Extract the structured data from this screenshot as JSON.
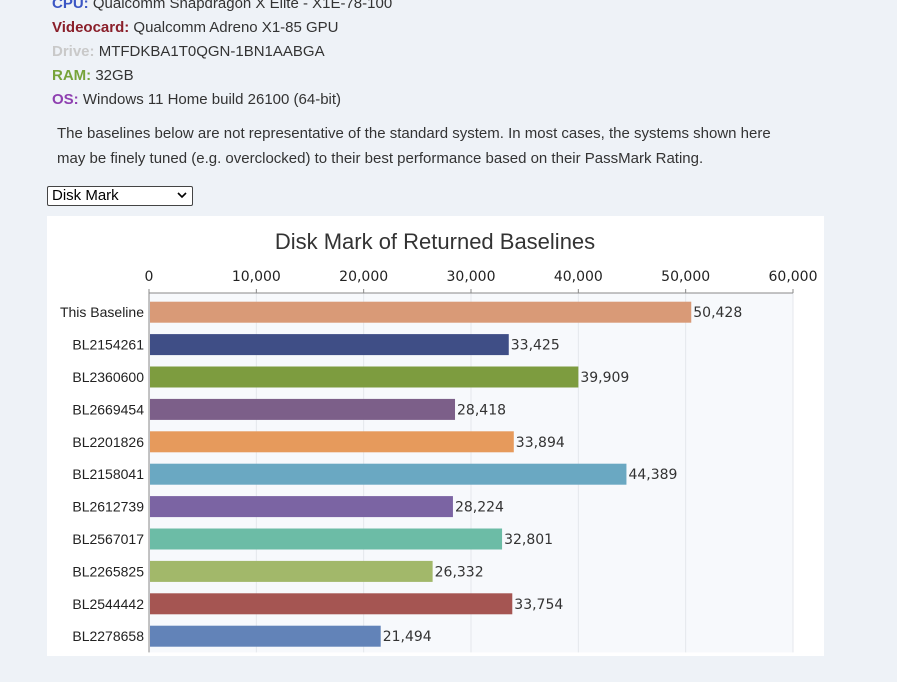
{
  "specs": [
    {
      "key": "CPU:",
      "value": "Qualcomm Snapdragon X Elite - X1E-78-100",
      "color": "#3b56c4"
    },
    {
      "key": "Videocard:",
      "value": "Qualcomm Adreno X1-85 GPU",
      "color": "#8a1f2a"
    },
    {
      "key": "Drive:",
      "value": "MTFDKBA1T0QGN-1BN1AABGA",
      "color": "#c9c9c9"
    },
    {
      "key": "RAM:",
      "value": "32GB",
      "color": "#76a33a"
    },
    {
      "key": "OS:",
      "value": "Windows 11 Home build 26100 (64-bit)",
      "color": "#8e3fb0"
    }
  ],
  "note": "The baselines below are not representative of the standard system. In most cases, the systems shown here may be finely tuned (e.g. overclocked) to their best performance based on their PassMark Rating.",
  "selector": {
    "value": "Disk Mark",
    "icon": "chevron-down-icon"
  },
  "chart_data": {
    "type": "bar",
    "orientation": "horizontal",
    "title": "Disk Mark of Returned Baselines",
    "xlim": [
      0,
      60000
    ],
    "ticks": [
      "0",
      "10,000",
      "20,000",
      "30,000",
      "40,000",
      "50,000",
      "60,000"
    ],
    "tick_values": [
      0,
      10000,
      20000,
      30000,
      40000,
      50000,
      60000
    ],
    "axis_position": "top",
    "grid": true,
    "categories": [
      "This Baseline",
      "BL2154261",
      "BL2360600",
      "BL2669454",
      "BL2201826",
      "BL2158041",
      "BL2612739",
      "BL2567017",
      "BL2265825",
      "BL2544442",
      "BL2278658"
    ],
    "values": [
      50428,
      33425,
      39909,
      28418,
      33894,
      44389,
      28224,
      32801,
      26332,
      33754,
      21494
    ],
    "value_labels": [
      "50,428",
      "33,425",
      "39,909",
      "28,418",
      "33,894",
      "44,389",
      "28,224",
      "32,801",
      "26,332",
      "33,754",
      "21,494"
    ],
    "colors": [
      "#d99a77",
      "#3f4e86",
      "#7d9c3f",
      "#7c5f89",
      "#e69a5c",
      "#6aa8c2",
      "#7b64a3",
      "#6cbca6",
      "#a2b86a",
      "#a55552",
      "#6283b8"
    ]
  }
}
